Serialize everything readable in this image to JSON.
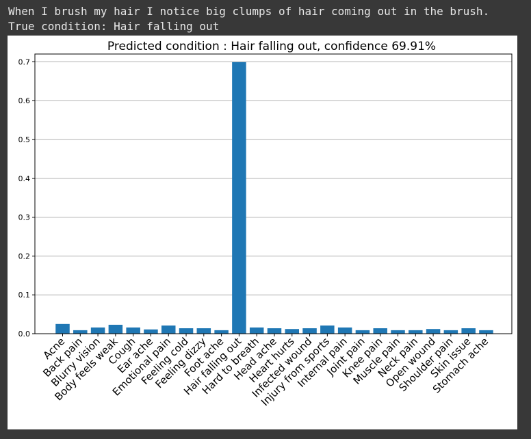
{
  "output": {
    "line1": "When I brush my hair I notice big clumps of hair coming out in the brush.",
    "line2": "True condition: Hair falling out"
  },
  "colors": {
    "bar": "#1f77b4",
    "grid": "#b0b0b0",
    "page_background": "#383838",
    "figure_background": "#ffffff"
  },
  "chart_data": {
    "type": "bar",
    "title": "Predicted condition : Hair falling out, confidence 69.91%",
    "xlabel": "",
    "ylabel": "",
    "ylim": [
      0,
      0.72
    ],
    "yticks": [
      "0.0",
      "0.1",
      "0.2",
      "0.3",
      "0.4",
      "0.5",
      "0.6",
      "0.7"
    ],
    "grid": "horizontal",
    "categories": [
      "Acne",
      "Back pain",
      "Blurry vision",
      "Body feels weak",
      "Cough",
      "Ear ache",
      "Emotional pain",
      "Feeling cold",
      "Feeling dizzy",
      "Foot ache",
      "Hair falling out",
      "Hard to breath",
      "Head ache",
      "Heart hurts",
      "Infected wound",
      "Injury from sports",
      "Internal pain",
      "Joint pain",
      "Knee pain",
      "Muscle pain",
      "Neck pain",
      "Open wound",
      "Shoulder pain",
      "Skin issue",
      "Stomach ache"
    ],
    "values": [
      0.025,
      0.009,
      0.016,
      0.023,
      0.016,
      0.011,
      0.021,
      0.014,
      0.014,
      0.009,
      0.6991,
      0.016,
      0.014,
      0.012,
      0.014,
      0.021,
      0.016,
      0.009,
      0.014,
      0.009,
      0.009,
      0.012,
      0.009,
      0.014,
      0.009
    ]
  }
}
